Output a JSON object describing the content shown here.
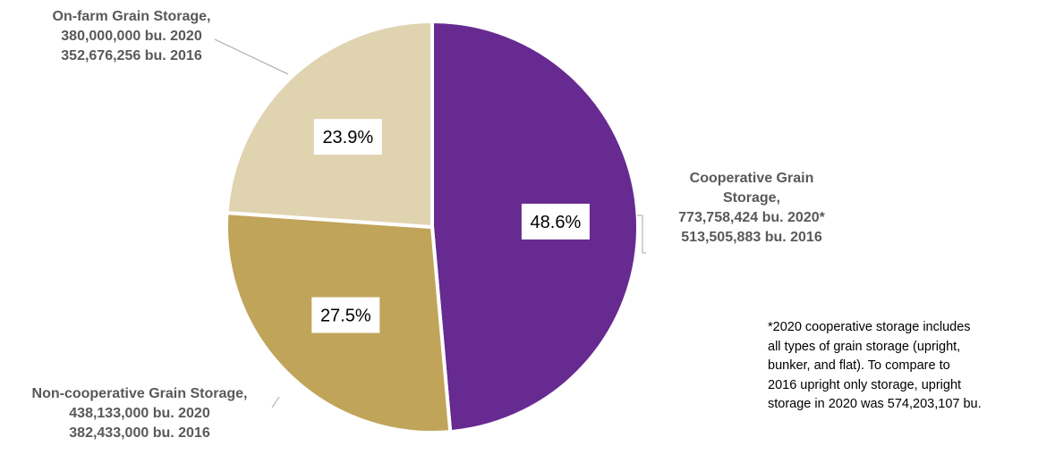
{
  "chart_data": {
    "type": "pie",
    "slices": [
      {
        "name_lines": [
          "Cooperative Grain",
          "Storage,",
          "773,758,424 bu. 2020*",
          "513,505,883 bu. 2016"
        ],
        "value": 48.6,
        "pct_label": "48.6%",
        "color": "#662a91"
      },
      {
        "name_lines": [
          "Non-cooperative Grain Storage,",
          "438,133,000 bu. 2020",
          "382,433,000 bu. 2016"
        ],
        "value": 27.5,
        "pct_label": "27.5%",
        "color": "#c0a45a"
      },
      {
        "name_lines": [
          "On-farm Grain Storage,",
          "380,000,000 bu. 2020",
          "352,676,256 bu. 2016"
        ],
        "value": 23.9,
        "pct_label": "23.9%",
        "color": "#e0d3b0"
      }
    ]
  },
  "footnote": "*2020 cooperative storage includes\nall types of grain storage (upright,\nbunker, and flat). To compare to\n2016 upright only storage, upright\nstorage in 2020 was 574,203,107 bu."
}
